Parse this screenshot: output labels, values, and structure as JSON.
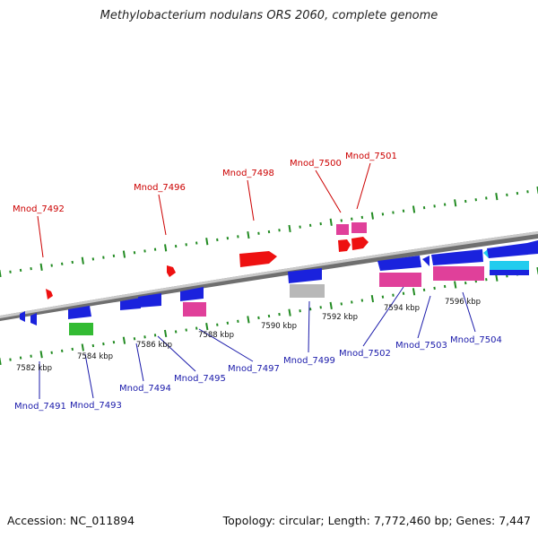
{
  "title": "Methylobacterium nodulans ORS 2060, complete genome",
  "accession": "Accession: NC_011894",
  "summary": "Topology: circular; Length: 7,772,460 bp; Genes: 7,447",
  "colors": {
    "background": "#ffffff",
    "backbone": "#8a8a8a",
    "tick": "#228b22",
    "forward_label": "#cc0000",
    "reverse_label": "#1a1aaa",
    "red_gene": "#ee1111",
    "blue_gene": "#1a22dd",
    "pink_gene": "#e0409a",
    "green_gene": "#33bb33",
    "gray_gene": "#b8b8b8",
    "cyan_gene": "#22ccee"
  },
  "scale_labels": [
    "7582 kbp",
    "7584 kbp",
    "7586 kbp",
    "7588 kbp",
    "7590 kbp",
    "7592 kbp",
    "7594 kbp",
    "7596 kbp"
  ],
  "forward_labels": [
    "Mnod_7492",
    "Mnod_7496",
    "Mnod_7498",
    "Mnod_7500",
    "Mnod_7501"
  ],
  "reverse_labels": [
    "Mnod_7491",
    "Mnod_7493",
    "Mnod_7494",
    "Mnod_7495",
    "Mnod_7497",
    "Mnod_7499",
    "Mnod_7502",
    "Mnod_7503",
    "Mnod_7504"
  ]
}
